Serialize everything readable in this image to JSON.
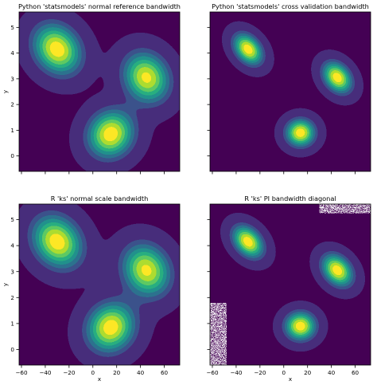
{
  "chart_data": {
    "type": "contour",
    "layout": "2x2 grid, shared axes",
    "xlim": [
      -62,
      73
    ],
    "ylim": [
      -0.6,
      5.6
    ],
    "x_ticks": [
      -60,
      -40,
      -20,
      0,
      20,
      40,
      60
    ],
    "y_ticks": [
      0,
      1,
      2,
      3,
      4,
      5
    ],
    "xlabel": "x",
    "ylabel": "y",
    "colormap": [
      "#440154",
      "#472d7b",
      "#3b528b",
      "#2c728e",
      "#21918c",
      "#28ae80",
      "#5ec962",
      "#addc30",
      "#fde725"
    ],
    "panels": [
      {
        "title": "Python 'statsmodels' normal reference bandwidth",
        "show_xticklabels": false,
        "show_yticklabels": true,
        "show_xlabel": false,
        "show_ylabel": true,
        "components": [
          {
            "x": -30,
            "y": 4.15,
            "sx": 14,
            "sy": 0.68,
            "w": 1.0,
            "r": -0.2
          },
          {
            "x": 45,
            "y": 3.05,
            "sx": 13.5,
            "sy": 0.68,
            "w": 0.95,
            "r": -0.15
          },
          {
            "x": 15,
            "y": 0.85,
            "sx": 13.5,
            "sy": 0.64,
            "w": 1.0,
            "r": 0.1
          }
        ],
        "white_regions": []
      },
      {
        "title": "Python 'statsmodels' cross validation bandwidth",
        "show_xticklabels": false,
        "show_yticklabels": false,
        "show_xlabel": false,
        "show_ylabel": false,
        "components": [
          {
            "x": -30,
            "y": 4.15,
            "sx": 8.5,
            "sy": 0.42,
            "w": 1.0,
            "r": -0.35
          },
          {
            "x": 45,
            "y": 3.05,
            "sx": 8.5,
            "sy": 0.42,
            "w": 1.0,
            "r": -0.3
          },
          {
            "x": 14,
            "y": 0.9,
            "sx": 8.5,
            "sy": 0.37,
            "w": 1.0,
            "r": 0.0
          }
        ],
        "white_regions": []
      },
      {
        "title": "R 'ks' normal scale bandwidth",
        "show_xticklabels": true,
        "show_yticklabels": true,
        "show_xlabel": true,
        "show_ylabel": true,
        "components": [
          {
            "x": -30,
            "y": 4.15,
            "sx": 14.5,
            "sy": 0.7,
            "w": 1.0,
            "r": -0.2
          },
          {
            "x": 45,
            "y": 3.05,
            "sx": 14,
            "sy": 0.7,
            "w": 0.95,
            "r": -0.15
          },
          {
            "x": 15,
            "y": 0.85,
            "sx": 14,
            "sy": 0.66,
            "w": 1.0,
            "r": 0.1
          }
        ],
        "white_regions": []
      },
      {
        "title": "R 'ks' PI bandwidth diagonal",
        "show_xticklabels": true,
        "show_yticklabels": false,
        "show_xlabel": true,
        "show_ylabel": false,
        "components": [
          {
            "x": -30,
            "y": 4.15,
            "sx": 9,
            "sy": 0.43,
            "w": 1.0,
            "r": -0.35
          },
          {
            "x": 45,
            "y": 3.05,
            "sx": 9,
            "sy": 0.43,
            "w": 1.0,
            "r": -0.3
          },
          {
            "x": 14,
            "y": 0.9,
            "sx": 9,
            "sy": 0.38,
            "w": 1.0,
            "r": 0.0
          }
        ],
        "white_regions": [
          {
            "x0": -62,
            "x1": -48,
            "y0": -0.6,
            "y1": 1.8
          },
          {
            "x0": 30,
            "x1": 73,
            "y0": 5.25,
            "y1": 5.6
          }
        ]
      }
    ]
  }
}
